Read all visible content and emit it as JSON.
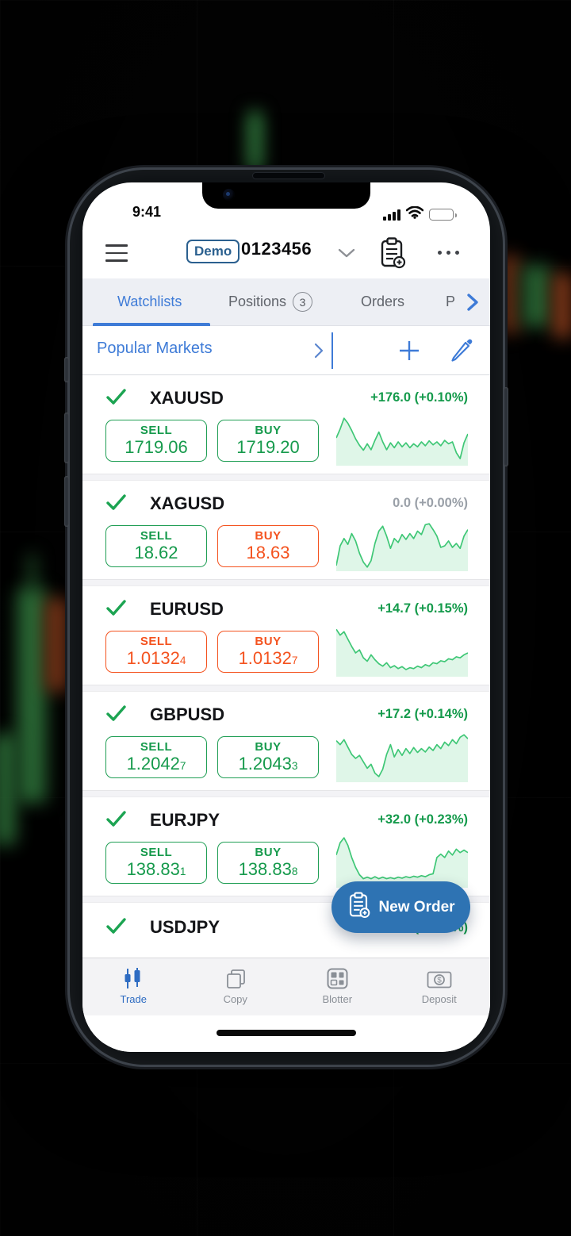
{
  "status_bar": {
    "time": "9:41"
  },
  "header": {
    "badge": "Demo",
    "account": "0123456",
    "icons": [
      "hamburger-icon",
      "chevron-down-icon",
      "clipboard-add-icon",
      "more-icon"
    ]
  },
  "tabs": [
    {
      "label": "Watchlists",
      "badge": "",
      "active": true
    },
    {
      "label": "Positions",
      "badge": "3",
      "active": false
    },
    {
      "label": "Orders",
      "badge": "",
      "active": false
    },
    {
      "label": "P",
      "badge": "",
      "active": false,
      "truncated": true
    }
  ],
  "watchlist": {
    "title": "Popular Markets",
    "icons": [
      "chevron-right-icon",
      "plus-icon",
      "pencil-icon"
    ]
  },
  "labels": {
    "sell": "SELL",
    "buy": "BUY"
  },
  "markets": [
    {
      "symbol": "XAUUSD",
      "change": "+176.0 (+0.10%)",
      "change_state": "up",
      "sell_price": "1719.06",
      "sell_sub": "",
      "buy_price": "1719.20",
      "buy_sub": "",
      "sell_tone": "green",
      "buy_tone": "green",
      "spark": [
        0.5,
        0.32,
        0.1,
        0.2,
        0.35,
        0.52,
        0.65,
        0.75,
        0.62,
        0.74,
        0.55,
        0.38,
        0.58,
        0.74,
        0.6,
        0.7,
        0.58,
        0.68,
        0.6,
        0.7,
        0.62,
        0.68,
        0.58,
        0.66,
        0.56,
        0.64,
        0.58,
        0.66,
        0.55,
        0.62,
        0.58,
        0.8,
        0.92,
        0.6,
        0.42
      ]
    },
    {
      "symbol": "XAGUSD",
      "change": "0.0 (+0.00%)",
      "change_state": "flat",
      "sell_price": "18.62",
      "sell_sub": "",
      "buy_price": "18.63",
      "buy_sub": "",
      "sell_tone": "green",
      "buy_tone": "orange",
      "spark": [
        0.95,
        0.55,
        0.4,
        0.52,
        0.3,
        0.45,
        0.7,
        0.88,
        0.98,
        0.85,
        0.5,
        0.25,
        0.15,
        0.35,
        0.6,
        0.4,
        0.48,
        0.32,
        0.42,
        0.3,
        0.4,
        0.25,
        0.32,
        0.12,
        0.1,
        0.22,
        0.35,
        0.58,
        0.55,
        0.45,
        0.58,
        0.5,
        0.6,
        0.35,
        0.22
      ]
    },
    {
      "symbol": "EURUSD",
      "change": "+14.7 (+0.15%)",
      "change_state": "up",
      "sell_price": "1.0132",
      "sell_sub": "4",
      "buy_price": "1.0132",
      "buy_sub": "7",
      "sell_tone": "orange",
      "buy_tone": "orange",
      "spark": [
        0.1,
        0.22,
        0.15,
        0.3,
        0.45,
        0.58,
        0.52,
        0.68,
        0.75,
        0.62,
        0.72,
        0.8,
        0.85,
        0.78,
        0.88,
        0.84,
        0.9,
        0.86,
        0.92,
        0.88,
        0.9,
        0.85,
        0.88,
        0.82,
        0.85,
        0.78,
        0.8,
        0.74,
        0.76,
        0.7,
        0.72,
        0.66,
        0.68,
        0.62,
        0.58
      ]
    },
    {
      "symbol": "GBPUSD",
      "change": "+17.2 (+0.14%)",
      "change_state": "up",
      "sell_price": "1.2042",
      "sell_sub": "7",
      "buy_price": "1.2043",
      "buy_sub": "3",
      "sell_tone": "green",
      "buy_tone": "green",
      "spark": [
        0.22,
        0.3,
        0.2,
        0.35,
        0.5,
        0.58,
        0.52,
        0.65,
        0.78,
        0.7,
        0.88,
        0.95,
        0.8,
        0.5,
        0.3,
        0.55,
        0.4,
        0.52,
        0.38,
        0.48,
        0.36,
        0.46,
        0.38,
        0.45,
        0.35,
        0.42,
        0.3,
        0.38,
        0.25,
        0.32,
        0.2,
        0.28,
        0.15,
        0.1,
        0.18
      ]
    },
    {
      "symbol": "EURJPY",
      "change": "+32.0 (+0.23%)",
      "change_state": "up",
      "sell_price": "138.83",
      "sell_sub": "1",
      "buy_price": "138.83",
      "buy_sub": "8",
      "sell_tone": "green",
      "buy_tone": "green",
      "spark": [
        0.4,
        0.15,
        0.05,
        0.2,
        0.45,
        0.65,
        0.8,
        0.88,
        0.85,
        0.88,
        0.84,
        0.88,
        0.85,
        0.88,
        0.86,
        0.88,
        0.85,
        0.87,
        0.84,
        0.86,
        0.83,
        0.85,
        0.82,
        0.84,
        0.8,
        0.78,
        0.45,
        0.38,
        0.45,
        0.32,
        0.4,
        0.28,
        0.35,
        0.3,
        0.35
      ]
    },
    {
      "symbol": "USDJPY",
      "change": "+11.2 (+0.08%)",
      "change_state": "up",
      "sell_price": "",
      "sell_sub": "",
      "buy_price": "",
      "buy_sub": "",
      "sell_tone": "green",
      "buy_tone": "green",
      "truncated": true,
      "spark": []
    }
  ],
  "fab": {
    "label": "New Order",
    "icon": "clipboard-add-icon"
  },
  "bottom_nav": [
    {
      "label": "Trade",
      "icon": "candles-icon",
      "active": true
    },
    {
      "label": "Copy",
      "icon": "copy-icon",
      "active": false
    },
    {
      "label": "Blotter",
      "icon": "grid-icon",
      "active": false
    },
    {
      "label": "Deposit",
      "icon": "banknote-icon",
      "active": false
    }
  ],
  "colors": {
    "accent_blue": "#3e7bd7",
    "fab_blue": "#2e73b3",
    "demo_blue": "#2b608f",
    "up_green": "#149a4b",
    "button_green": "#1f9e54",
    "button_orange": "#f4521e",
    "flat_gray": "#9aa0a8",
    "spark_green": "#3fc776"
  }
}
